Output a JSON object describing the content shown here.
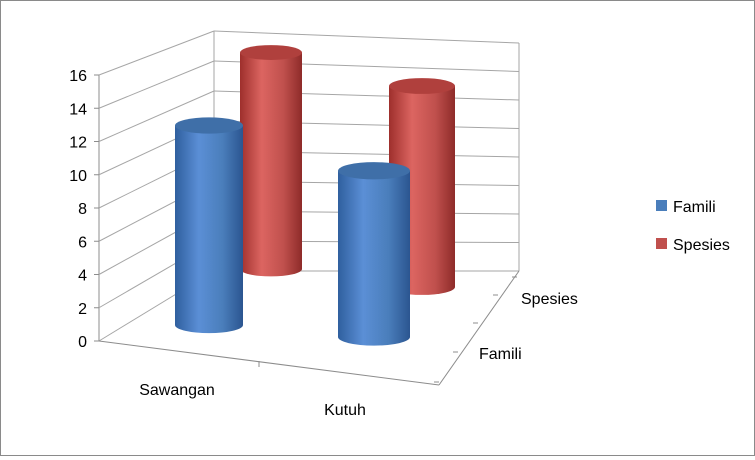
{
  "chart_data": {
    "type": "bar",
    "style": "3d-cylinder",
    "categories": [
      "Sawangan",
      "Kutuh"
    ],
    "depth_categories": [
      "Famili",
      "Spesies"
    ],
    "series": [
      {
        "name": "Famili",
        "color": "#4a7ebb",
        "values": [
          12,
          10
        ]
      },
      {
        "name": "Spesies",
        "color": "#c0504d",
        "values": [
          14,
          13
        ]
      }
    ],
    "ylim": [
      0,
      16
    ],
    "yticks": [
      "0",
      "2",
      "4",
      "6",
      "8",
      "10",
      "12",
      "14",
      "16"
    ],
    "grid": true,
    "legend_position": "right"
  }
}
